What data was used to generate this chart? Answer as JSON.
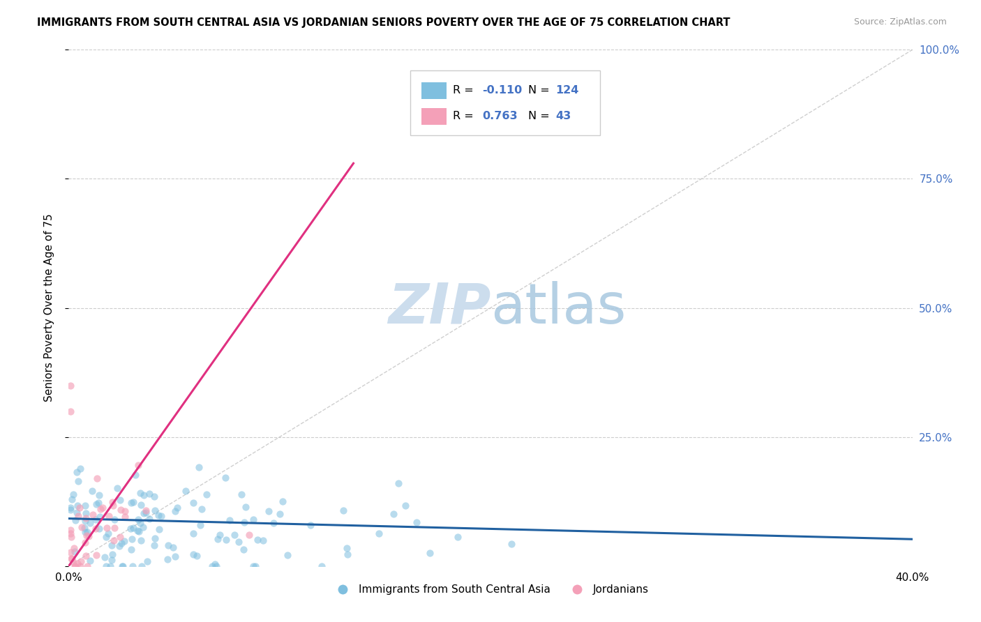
{
  "title": "IMMIGRANTS FROM SOUTH CENTRAL ASIA VS JORDANIAN SENIORS POVERTY OVER THE AGE OF 75 CORRELATION CHART",
  "source": "Source: ZipAtlas.com",
  "ylabel": "Seniors Poverty Over the Age of 75",
  "xlim": [
    0.0,
    0.4
  ],
  "ylim": [
    0.0,
    1.0
  ],
  "blue_color": "#7fbfdf",
  "pink_color": "#f4a0b8",
  "blue_line_color": "#2060a0",
  "pink_line_color": "#e03080",
  "ref_line_color": "#bbbbbb",
  "watermark_color": "#ccdded",
  "r_blue": -0.11,
  "n_blue": 124,
  "r_pink": 0.763,
  "n_pink": 43,
  "legend_label_blue": "Immigrants from South Central Asia",
  "legend_label_pink": "Jordanians",
  "legend_r_color": "#4472c4",
  "legend_n_color": "#4472c4",
  "ytick_color": "#4472c4",
  "xtick_labels": [
    "0.0%",
    "",
    "",
    "",
    "",
    "",
    "",
    "",
    "40.0%"
  ],
  "ytick_labels_right": [
    "",
    "25.0%",
    "50.0%",
    "75.0%",
    "100.0%"
  ]
}
